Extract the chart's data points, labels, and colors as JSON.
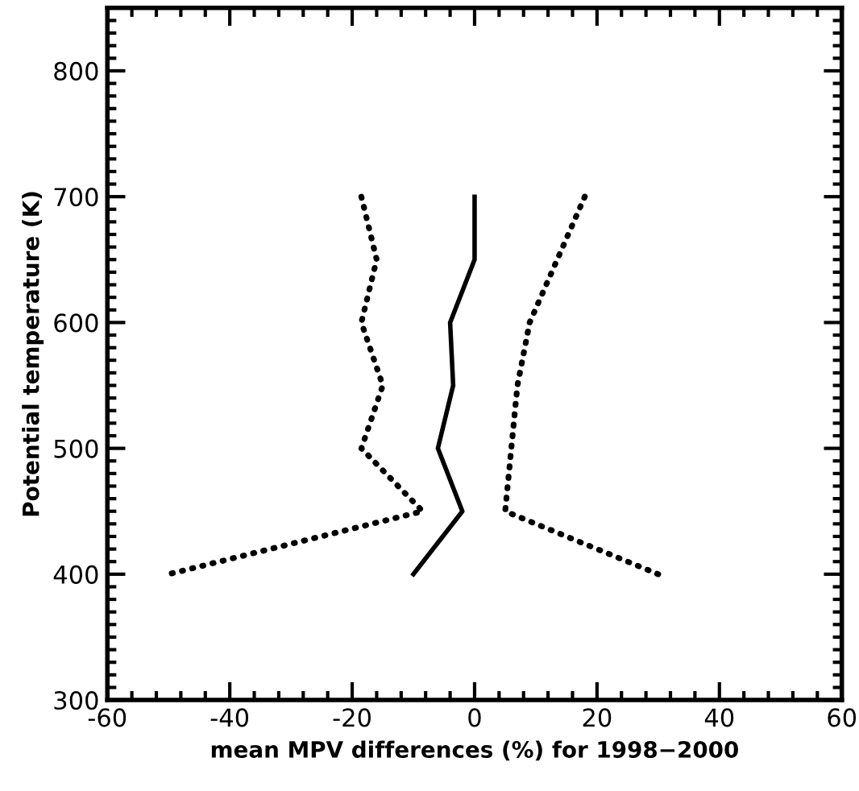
{
  "chart_data": {
    "type": "line",
    "xlabel": "mean MPV differences (%) for 1998−2000",
    "ylabel": "Potential temperature (K)",
    "xlim": [
      -60,
      60
    ],
    "xticks": [
      -60,
      -40,
      -20,
      0,
      20,
      40,
      60
    ],
    "ylim": [
      300,
      850
    ],
    "yticks": [
      300,
      400,
      500,
      600,
      700,
      800
    ],
    "grid": false,
    "legend": false,
    "marker": "none",
    "series": [
      {
        "color": "#000000",
        "line_style": "solid",
        "x": [
          0,
          0,
          -4,
          -3.5,
          -6,
          -2,
          -10
        ],
        "values": [
          700,
          650,
          600,
          550,
          500,
          450,
          400
        ]
      },
      {
        "color": "#000000",
        "line_style": "dotted",
        "x": [
          -18.5,
          -16,
          -18.5,
          -15,
          -18.5,
          -8.5,
          -50
        ],
        "values": [
          700,
          650,
          600,
          550,
          500,
          450,
          400
        ]
      },
      {
        "color": "#000000",
        "line_style": "dotted",
        "x": [
          18,
          13.5,
          9,
          7,
          6,
          5,
          30
        ],
        "values": [
          700,
          650,
          600,
          550,
          500,
          450,
          400
        ]
      }
    ]
  }
}
